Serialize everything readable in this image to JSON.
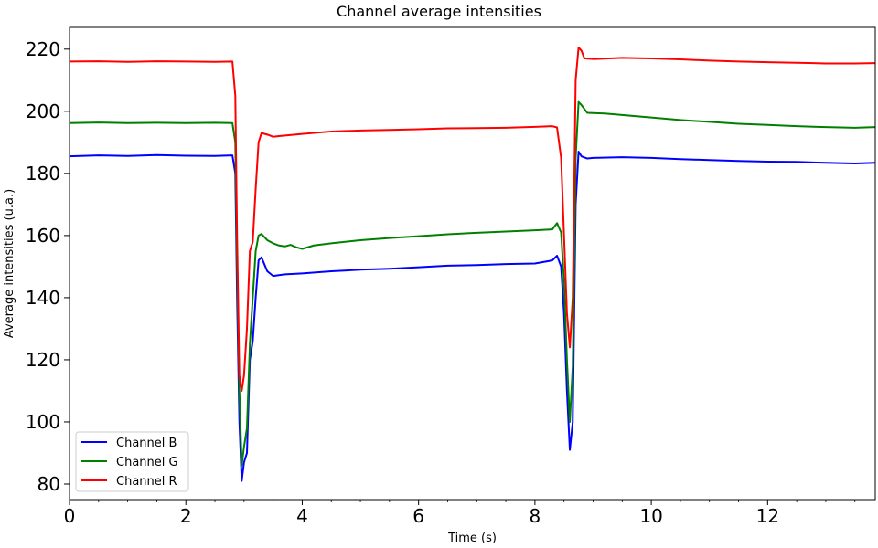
{
  "chart_data": {
    "type": "line",
    "title": "Channel average intensities",
    "xlabel": "Time (s)",
    "ylabel": "Average intensities (u.a.)",
    "xlim": [
      0,
      13.85
    ],
    "ylim": [
      75,
      227
    ],
    "xticks": [
      0,
      2,
      4,
      6,
      8,
      10,
      12
    ],
    "yticks": [
      80,
      100,
      120,
      140,
      160,
      180,
      200,
      220
    ],
    "grid": false,
    "legend_position": "lower-left",
    "series": [
      {
        "name": "Channel B",
        "color": "#0000ff",
        "points": [
          [
            0,
            185.5
          ],
          [
            0.5,
            185.8
          ],
          [
            1,
            185.6
          ],
          [
            1.5,
            185.9
          ],
          [
            2,
            185.7
          ],
          [
            2.5,
            185.6
          ],
          [
            2.8,
            185.8
          ],
          [
            2.85,
            180
          ],
          [
            2.88,
            140
          ],
          [
            2.92,
            100
          ],
          [
            2.96,
            81
          ],
          [
            3.0,
            87
          ],
          [
            3.05,
            90
          ],
          [
            3.1,
            120
          ],
          [
            3.15,
            126
          ],
          [
            3.2,
            140
          ],
          [
            3.25,
            152
          ],
          [
            3.3,
            153
          ],
          [
            3.4,
            148.5
          ],
          [
            3.5,
            147
          ],
          [
            3.7,
            147.5
          ],
          [
            4,
            147.8
          ],
          [
            4.5,
            148.5
          ],
          [
            5,
            149
          ],
          [
            5.5,
            149.3
          ],
          [
            6,
            149.8
          ],
          [
            6.5,
            150.3
          ],
          [
            7,
            150.5
          ],
          [
            7.5,
            150.8
          ],
          [
            8,
            151
          ],
          [
            8.3,
            152
          ],
          [
            8.38,
            153.5
          ],
          [
            8.45,
            150
          ],
          [
            8.5,
            135
          ],
          [
            8.55,
            110
          ],
          [
            8.6,
            91
          ],
          [
            8.65,
            100
          ],
          [
            8.7,
            170
          ],
          [
            8.75,
            187
          ],
          [
            8.8,
            185.5
          ],
          [
            8.9,
            184.8
          ],
          [
            9,
            185
          ],
          [
            9.5,
            185.2
          ],
          [
            10,
            185
          ],
          [
            10.5,
            184.6
          ],
          [
            11,
            184.3
          ],
          [
            11.5,
            184
          ],
          [
            12,
            183.8
          ],
          [
            12.5,
            183.7
          ],
          [
            13,
            183.4
          ],
          [
            13.5,
            183.2
          ],
          [
            13.85,
            183.4
          ]
        ]
      },
      {
        "name": "Channel G",
        "color": "#008000",
        "points": [
          [
            0,
            196.2
          ],
          [
            0.5,
            196.4
          ],
          [
            1,
            196.2
          ],
          [
            1.5,
            196.3
          ],
          [
            2,
            196.2
          ],
          [
            2.5,
            196.3
          ],
          [
            2.8,
            196.2
          ],
          [
            2.85,
            190
          ],
          [
            2.88,
            150
          ],
          [
            2.92,
            110
          ],
          [
            2.96,
            86
          ],
          [
            3.0,
            92
          ],
          [
            3.05,
            98
          ],
          [
            3.1,
            125
          ],
          [
            3.15,
            140
          ],
          [
            3.2,
            155
          ],
          [
            3.25,
            160
          ],
          [
            3.3,
            160.5
          ],
          [
            3.4,
            158.5
          ],
          [
            3.5,
            157.5
          ],
          [
            3.6,
            156.8
          ],
          [
            3.7,
            156.5
          ],
          [
            3.8,
            157
          ],
          [
            3.9,
            156.2
          ],
          [
            4,
            155.7
          ],
          [
            4.2,
            156.8
          ],
          [
            4.5,
            157.5
          ],
          [
            5,
            158.5
          ],
          [
            5.5,
            159.2
          ],
          [
            6,
            159.8
          ],
          [
            6.5,
            160.4
          ],
          [
            7,
            160.9
          ],
          [
            7.5,
            161.3
          ],
          [
            8,
            161.7
          ],
          [
            8.3,
            162
          ],
          [
            8.38,
            164
          ],
          [
            8.45,
            161
          ],
          [
            8.5,
            145
          ],
          [
            8.55,
            120
          ],
          [
            8.6,
            100
          ],
          [
            8.65,
            118
          ],
          [
            8.7,
            185
          ],
          [
            8.75,
            203
          ],
          [
            8.8,
            202
          ],
          [
            8.9,
            199.5
          ],
          [
            9.2,
            199.3
          ],
          [
            9.5,
            198.8
          ],
          [
            10,
            198
          ],
          [
            10.5,
            197.2
          ],
          [
            11,
            196.6
          ],
          [
            11.5,
            196
          ],
          [
            12,
            195.6
          ],
          [
            12.5,
            195.2
          ],
          [
            13,
            194.9
          ],
          [
            13.5,
            194.7
          ],
          [
            13.85,
            194.9
          ]
        ]
      },
      {
        "name": "Channel R",
        "color": "#ff0000",
        "points": [
          [
            0,
            216
          ],
          [
            0.5,
            216.1
          ],
          [
            1,
            215.9
          ],
          [
            1.5,
            216.1
          ],
          [
            2,
            216
          ],
          [
            2.5,
            215.9
          ],
          [
            2.8,
            216
          ],
          [
            2.85,
            205
          ],
          [
            2.88,
            160
          ],
          [
            2.92,
            115
          ],
          [
            2.96,
            110
          ],
          [
            3.0,
            115
          ],
          [
            3.05,
            130
          ],
          [
            3.1,
            155
          ],
          [
            3.15,
            158
          ],
          [
            3.2,
            175
          ],
          [
            3.25,
            190
          ],
          [
            3.3,
            193
          ],
          [
            3.4,
            192.5
          ],
          [
            3.5,
            191.8
          ],
          [
            3.6,
            192
          ],
          [
            4,
            192.7
          ],
          [
            4.5,
            193.5
          ],
          [
            5,
            193.8
          ],
          [
            5.5,
            194
          ],
          [
            6,
            194.2
          ],
          [
            6.5,
            194.5
          ],
          [
            7,
            194.6
          ],
          [
            7.5,
            194.7
          ],
          [
            8,
            195
          ],
          [
            8.3,
            195.2
          ],
          [
            8.38,
            194.8
          ],
          [
            8.45,
            185
          ],
          [
            8.5,
            160
          ],
          [
            8.55,
            135
          ],
          [
            8.6,
            124
          ],
          [
            8.65,
            140
          ],
          [
            8.7,
            210
          ],
          [
            8.75,
            220.5
          ],
          [
            8.8,
            219.5
          ],
          [
            8.85,
            217
          ],
          [
            9,
            216.8
          ],
          [
            9.5,
            217.2
          ],
          [
            10,
            217
          ],
          [
            10.5,
            216.7
          ],
          [
            11,
            216.3
          ],
          [
            11.5,
            216
          ],
          [
            12,
            215.8
          ],
          [
            12.5,
            215.6
          ],
          [
            13,
            215.4
          ],
          [
            13.5,
            215.4
          ],
          [
            13.85,
            215.5
          ]
        ]
      }
    ]
  }
}
